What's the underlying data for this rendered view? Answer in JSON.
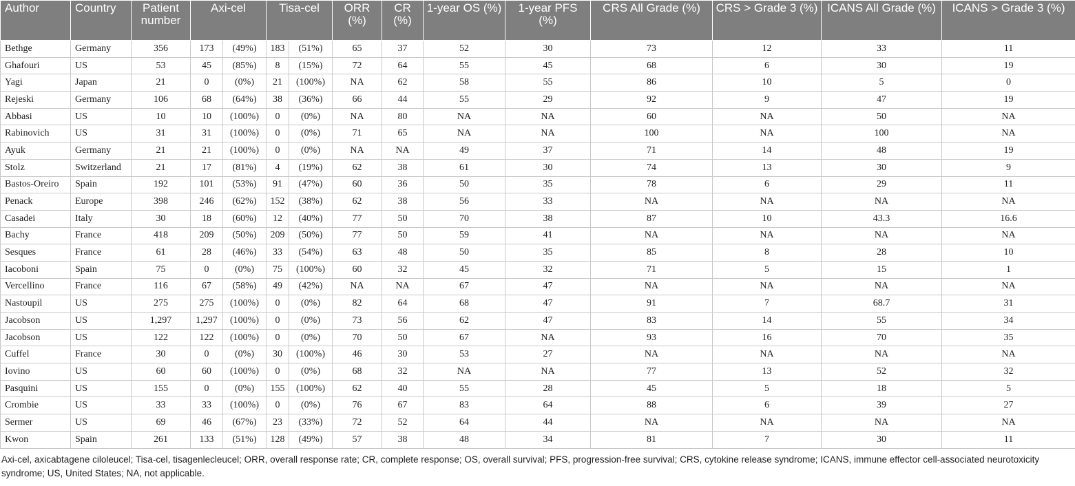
{
  "headers": {
    "author": "Author",
    "country": "Country",
    "patients": "Patient number",
    "axicel": "Axi-cel",
    "tisacel": "Tisa-cel",
    "orr": "ORR (%)",
    "cr": "CR (%)",
    "os": "1-year OS (%)",
    "pfs": "1-year PFS (%)",
    "crs_all": "CRS All Grade (%)",
    "crs_g3": "CRS > Grade 3 (%)",
    "icans_all": "ICANS All Grade (%)",
    "icans_g3": "ICANS > Grade 3 (%)"
  },
  "rows": [
    [
      "Bethge",
      "Germany",
      "356",
      "173",
      "(49%)",
      "183",
      "(51%)",
      "65",
      "37",
      "52",
      "30",
      "73",
      "12",
      "33",
      "11"
    ],
    [
      "Ghafouri",
      "US",
      "53",
      "45",
      "(85%)",
      "8",
      "(15%)",
      "72",
      "64",
      "55",
      "45",
      "68",
      "6",
      "30",
      "19"
    ],
    [
      "Yagi",
      "Japan",
      "21",
      "0",
      "(0%)",
      "21",
      "(100%)",
      "NA",
      "62",
      "58",
      "55",
      "86",
      "10",
      "5",
      "0"
    ],
    [
      "Rejeski",
      "Germany",
      "106",
      "68",
      "(64%)",
      "38",
      "(36%)",
      "66",
      "44",
      "55",
      "29",
      "92",
      "9",
      "47",
      "19"
    ],
    [
      "Abbasi",
      "US",
      "10",
      "10",
      "(100%)",
      "0",
      "(0%)",
      "NA",
      "80",
      "NA",
      "NA",
      "60",
      "NA",
      "50",
      "NA"
    ],
    [
      "Rabinovich",
      "US",
      "31",
      "31",
      "(100%)",
      "0",
      "(0%)",
      "71",
      "65",
      "NA",
      "NA",
      "100",
      "NA",
      "100",
      "NA"
    ],
    [
      "Ayuk",
      "Germany",
      "21",
      "21",
      "(100%)",
      "0",
      "(0%)",
      "NA",
      "NA",
      "49",
      "37",
      "71",
      "14",
      "48",
      "19"
    ],
    [
      "Stolz",
      "Switzerland",
      "21",
      "17",
      "(81%)",
      "4",
      "(19%)",
      "62",
      "38",
      "61",
      "30",
      "74",
      "13",
      "30",
      "9"
    ],
    [
      "Bastos-Oreiro",
      "Spain",
      "192",
      "101",
      "(53%)",
      "91",
      "(47%)",
      "60",
      "36",
      "50",
      "35",
      "78",
      "6",
      "29",
      "11"
    ],
    [
      "Penack",
      "Europe",
      "398",
      "246",
      "(62%)",
      "152",
      "(38%)",
      "62",
      "38",
      "56",
      "33",
      "NA",
      "NA",
      "NA",
      "NA"
    ],
    [
      "Casadei",
      "Italy",
      "30",
      "18",
      "(60%)",
      "12",
      "(40%)",
      "77",
      "50",
      "70",
      "38",
      "87",
      "10",
      "43.3",
      "16.6"
    ],
    [
      "Bachy",
      "France",
      "418",
      "209",
      "(50%)",
      "209",
      "(50%)",
      "77",
      "50",
      "59",
      "41",
      "NA",
      "NA",
      "NA",
      "NA"
    ],
    [
      "Sesques",
      "France",
      "61",
      "28",
      "(46%)",
      "33",
      "(54%)",
      "63",
      "48",
      "50",
      "35",
      "85",
      "8",
      "28",
      "10"
    ],
    [
      "Iacoboni",
      "Spain",
      "75",
      "0",
      "(0%)",
      "75",
      "(100%)",
      "60",
      "32",
      "45",
      "32",
      "71",
      "5",
      "15",
      "1"
    ],
    [
      "Vercellino",
      "France",
      "116",
      "67",
      "(58%)",
      "49",
      "(42%)",
      "NA",
      "NA",
      "67",
      "47",
      "NA",
      "NA",
      "NA",
      "NA"
    ],
    [
      "Nastoupil",
      "US",
      "275",
      "275",
      "(100%)",
      "0",
      "(0%)",
      "82",
      "64",
      "68",
      "47",
      "91",
      "7",
      "68.7",
      "31"
    ],
    [
      "Jacobson",
      "US",
      "1,297",
      "1,297",
      "(100%)",
      "0",
      "(0%)",
      "73",
      "56",
      "62",
      "47",
      "83",
      "14",
      "55",
      "34"
    ],
    [
      "Jacobson",
      "US",
      "122",
      "122",
      "(100%)",
      "0",
      "(0%)",
      "70",
      "50",
      "67",
      "NA",
      "93",
      "16",
      "70",
      "35"
    ],
    [
      "Cuffel",
      "France",
      "30",
      "0",
      "(0%)",
      "30",
      "(100%)",
      "46",
      "30",
      "53",
      "27",
      "NA",
      "NA",
      "NA",
      "NA"
    ],
    [
      "Iovino",
      "US",
      "60",
      "60",
      "(100%)",
      "0",
      "(0%)",
      "68",
      "32",
      "NA",
      "NA",
      "77",
      "13",
      "52",
      "32"
    ],
    [
      "Pasquini",
      "US",
      "155",
      "0",
      "(0%)",
      "155",
      "(100%)",
      "62",
      "40",
      "55",
      "28",
      "45",
      "5",
      "18",
      "5"
    ],
    [
      "Crombie",
      "US",
      "33",
      "33",
      "(100%)",
      "0",
      "(0%)",
      "76",
      "67",
      "83",
      "64",
      "88",
      "6",
      "39",
      "27"
    ],
    [
      "Sermer",
      "US",
      "69",
      "46",
      "(67%)",
      "23",
      "(33%)",
      "72",
      "52",
      "64",
      "44",
      "NA",
      "NA",
      "NA",
      "NA"
    ],
    [
      "Kwon",
      "Spain",
      "261",
      "133",
      "(51%)",
      "128",
      "(49%)",
      "57",
      "38",
      "48",
      "34",
      "81",
      "7",
      "30",
      "11"
    ]
  ],
  "footnote": "Axi-cel, axicabtagene ciloleucel; Tisa-cel, tisagenlecleucel; ORR, overall response rate; CR, complete response; OS, overall survival; PFS, progression-free survival; CRS, cytokine release syndrome; ICANS, immune effector cell-associated neurotoxicity syndrome; US, United States; NA, not applicable."
}
